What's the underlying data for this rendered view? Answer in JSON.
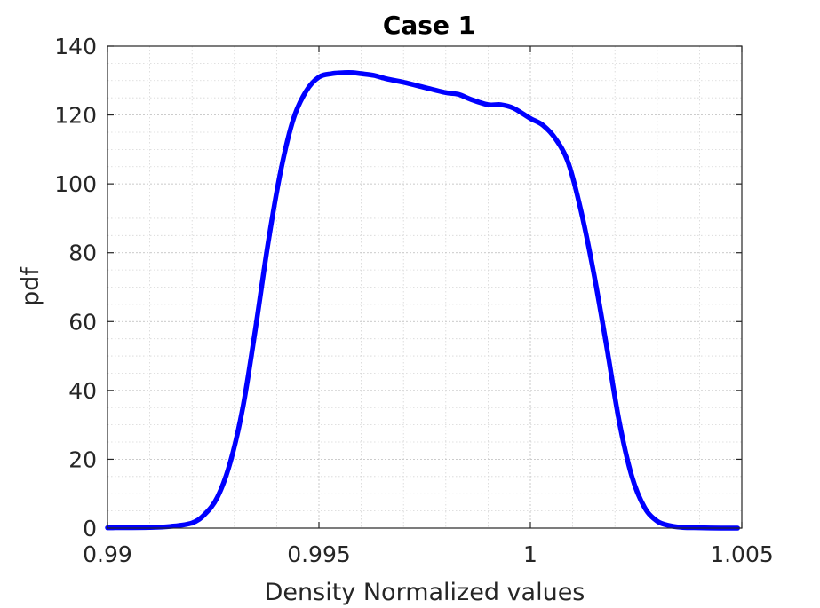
{
  "chart_data": {
    "type": "line",
    "title": "Case 1",
    "xlabel": "Density Normalized values",
    "ylabel": "pdf",
    "xlim": [
      0.99,
      1.005
    ],
    "ylim": [
      0,
      140
    ],
    "x_ticks": [
      0.99,
      0.995,
      1,
      1.005
    ],
    "x_tick_labels": [
      "0.99",
      "0.995",
      "1",
      "1.005"
    ],
    "y_ticks": [
      0,
      20,
      40,
      60,
      80,
      100,
      120,
      140
    ],
    "y_tick_labels": [
      "0",
      "20",
      "40",
      "60",
      "80",
      "100",
      "120",
      "140"
    ],
    "grid": true,
    "minor_grid": true,
    "series": [
      {
        "color": "#0000ff",
        "x": [
          0.99,
          0.991,
          0.9915,
          0.992,
          0.9923,
          0.9926,
          0.9929,
          0.9932,
          0.9935,
          0.9938,
          0.9941,
          0.9944,
          0.9947,
          0.995,
          0.9953,
          0.9956,
          0.9958,
          0.996,
          0.9963,
          0.9966,
          0.997,
          0.9975,
          0.998,
          0.9983,
          0.9986,
          0.999,
          0.9993,
          0.9996,
          1.0,
          1.0003,
          1.0006,
          1.0009,
          1.0012,
          1.0015,
          1.0018,
          1.0021,
          1.0024,
          1.0027,
          1.003,
          1.0033,
          1.0036,
          1.004,
          1.0045,
          1.0049
        ],
        "y": [
          0.1,
          0.2,
          0.5,
          1.5,
          4,
          9,
          19,
          35,
          58,
          83,
          104,
          119,
          127,
          131,
          132,
          132.3,
          132.3,
          132,
          131.5,
          130.5,
          129.5,
          128,
          126.5,
          126,
          124.5,
          123,
          123,
          122,
          119,
          117,
          113,
          106,
          92,
          74,
          53,
          31,
          15,
          6,
          2,
          0.7,
          0.2,
          0.1,
          0,
          0
        ]
      }
    ]
  }
}
